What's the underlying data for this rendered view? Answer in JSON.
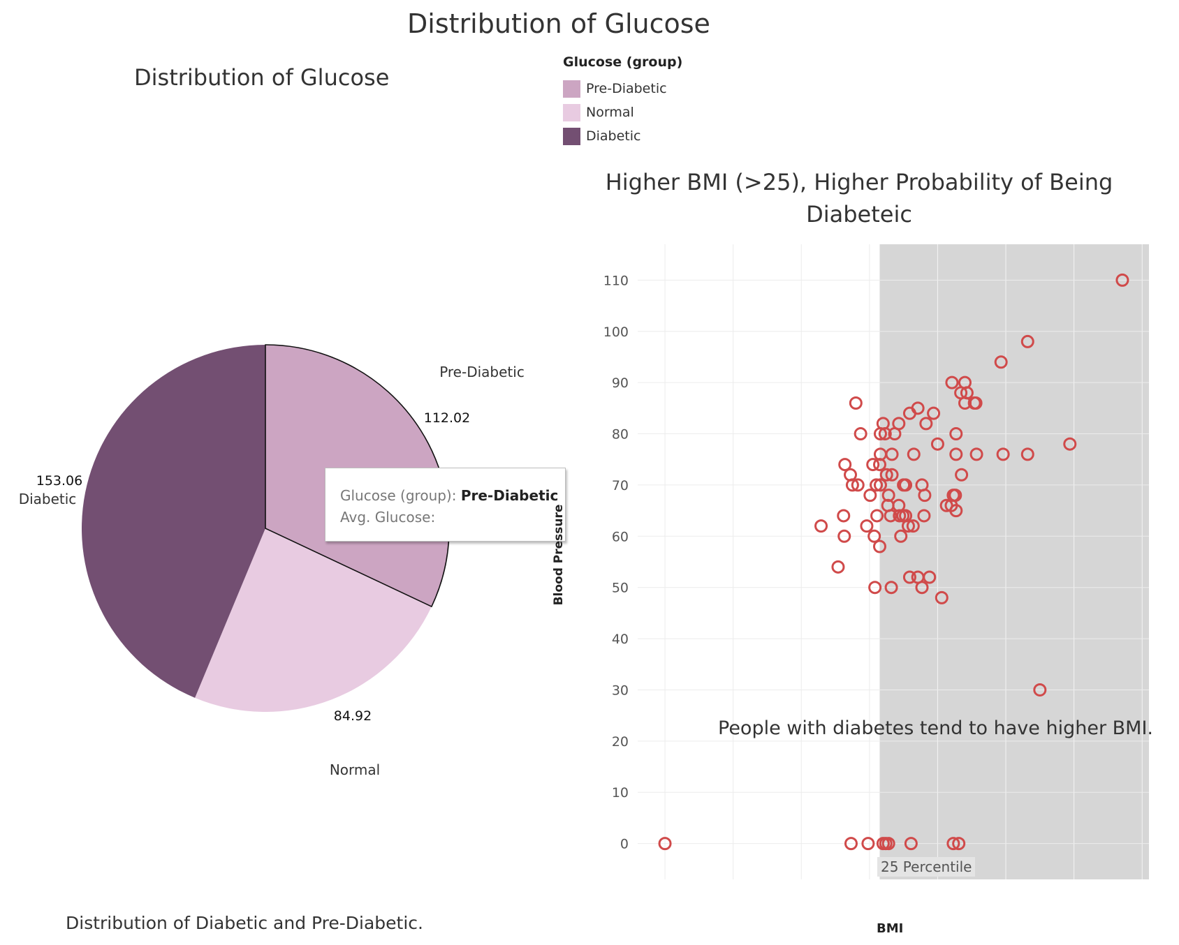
{
  "main_title": "Distribution of Glucose",
  "legend": {
    "title": "Glucose (group)",
    "items": [
      {
        "label": "Pre-Diabetic",
        "color": "#cca5c2"
      },
      {
        "label": "Normal",
        "color": "#e8cbe1"
      },
      {
        "label": "Diabetic",
        "color": "#734f72"
      }
    ]
  },
  "tooltip": {
    "field1_label": "Glucose (group):",
    "field1_value": "Pre-Diabetic",
    "field2_label": "Avg. Glucose:"
  },
  "chart_data": [
    {
      "type": "pie",
      "title": "Distribution of Glucose",
      "caption": "Distribution of Diabetic and Pre-Diabetic.",
      "slices": [
        {
          "label": "Pre-Diabetic",
          "value": 112.02,
          "value_text": "112.02",
          "color": "#cca5c2"
        },
        {
          "label": "Normal",
          "value": 84.92,
          "value_text": "84.92",
          "color": "#e8cbe1"
        },
        {
          "label": "Diabetic",
          "value": 153.06,
          "value_text": "153.06",
          "color": "#734f72"
        }
      ],
      "highlighted": "Pre-Diabetic"
    },
    {
      "type": "scatter",
      "title": "Higher BMI (>25), Higher Probability of Being Diabeteic",
      "xlabel": "BMI",
      "ylabel": "Blood Pressure",
      "xlim": [
        -4,
        71
      ],
      "ylim": [
        -7,
        117
      ],
      "xticks": [
        0,
        10,
        20,
        30,
        40,
        50,
        60,
        70
      ],
      "yticks": [
        0,
        10,
        20,
        30,
        40,
        50,
        60,
        70,
        80,
        90,
        100,
        110
      ],
      "grid": true,
      "marker_color": "#d04a4a",
      "reference_band": {
        "from": 31.5,
        "label": "25 Percentile",
        "color": "#d6d6d6"
      },
      "annotation": "People with diabetes tend to have higher BMI.",
      "points": [
        [
          67.1,
          110
        ],
        [
          53.2,
          98
        ],
        [
          49.3,
          94
        ],
        [
          42.1,
          90
        ],
        [
          44.0,
          90
        ],
        [
          43.4,
          88
        ],
        [
          44.3,
          88
        ],
        [
          44.0,
          86
        ],
        [
          45.4,
          86
        ],
        [
          45.6,
          86
        ],
        [
          28.0,
          86
        ],
        [
          37.1,
          85
        ],
        [
          39.4,
          84
        ],
        [
          35.9,
          84
        ],
        [
          32.0,
          82
        ],
        [
          34.3,
          82
        ],
        [
          38.3,
          82
        ],
        [
          28.7,
          80
        ],
        [
          31.6,
          80
        ],
        [
          32.3,
          80
        ],
        [
          33.7,
          80
        ],
        [
          42.7,
          80
        ],
        [
          40.0,
          78
        ],
        [
          59.4,
          78
        ],
        [
          31.6,
          76
        ],
        [
          33.3,
          76
        ],
        [
          36.5,
          76
        ],
        [
          42.7,
          76
        ],
        [
          45.7,
          76
        ],
        [
          49.6,
          76
        ],
        [
          53.2,
          76
        ],
        [
          26.4,
          74
        ],
        [
          30.5,
          74
        ],
        [
          31.5,
          74
        ],
        [
          27.2,
          72
        ],
        [
          32.5,
          72
        ],
        [
          33.3,
          72
        ],
        [
          43.5,
          72
        ],
        [
          27.5,
          70
        ],
        [
          28.3,
          70
        ],
        [
          31.0,
          70
        ],
        [
          31.6,
          70
        ],
        [
          35.0,
          70
        ],
        [
          35.3,
          70
        ],
        [
          37.7,
          70
        ],
        [
          30.1,
          68
        ],
        [
          32.8,
          68
        ],
        [
          38.1,
          68
        ],
        [
          42.3,
          68
        ],
        [
          42.6,
          68
        ],
        [
          32.7,
          66
        ],
        [
          34.3,
          66
        ],
        [
          41.3,
          66
        ],
        [
          42.0,
          66
        ],
        [
          42.7,
          65
        ],
        [
          26.2,
          64
        ],
        [
          31.1,
          64
        ],
        [
          33.1,
          64
        ],
        [
          34.4,
          64
        ],
        [
          34.9,
          64
        ],
        [
          35.3,
          64
        ],
        [
          38.0,
          64
        ],
        [
          22.9,
          62
        ],
        [
          29.6,
          62
        ],
        [
          35.7,
          62
        ],
        [
          36.4,
          62
        ],
        [
          26.3,
          60
        ],
        [
          30.7,
          60
        ],
        [
          34.6,
          60
        ],
        [
          31.5,
          58
        ],
        [
          25.4,
          54
        ],
        [
          35.9,
          52
        ],
        [
          37.1,
          52
        ],
        [
          38.8,
          52
        ],
        [
          30.8,
          50
        ],
        [
          33.2,
          50
        ],
        [
          37.7,
          50
        ],
        [
          40.6,
          48
        ],
        [
          55.0,
          30
        ],
        [
          0.0,
          0
        ],
        [
          27.3,
          0
        ],
        [
          29.8,
          0
        ],
        [
          32.0,
          0
        ],
        [
          32.4,
          0
        ],
        [
          32.8,
          0
        ],
        [
          36.1,
          0
        ],
        [
          42.3,
          0
        ],
        [
          43.1,
          0
        ]
      ]
    }
  ]
}
